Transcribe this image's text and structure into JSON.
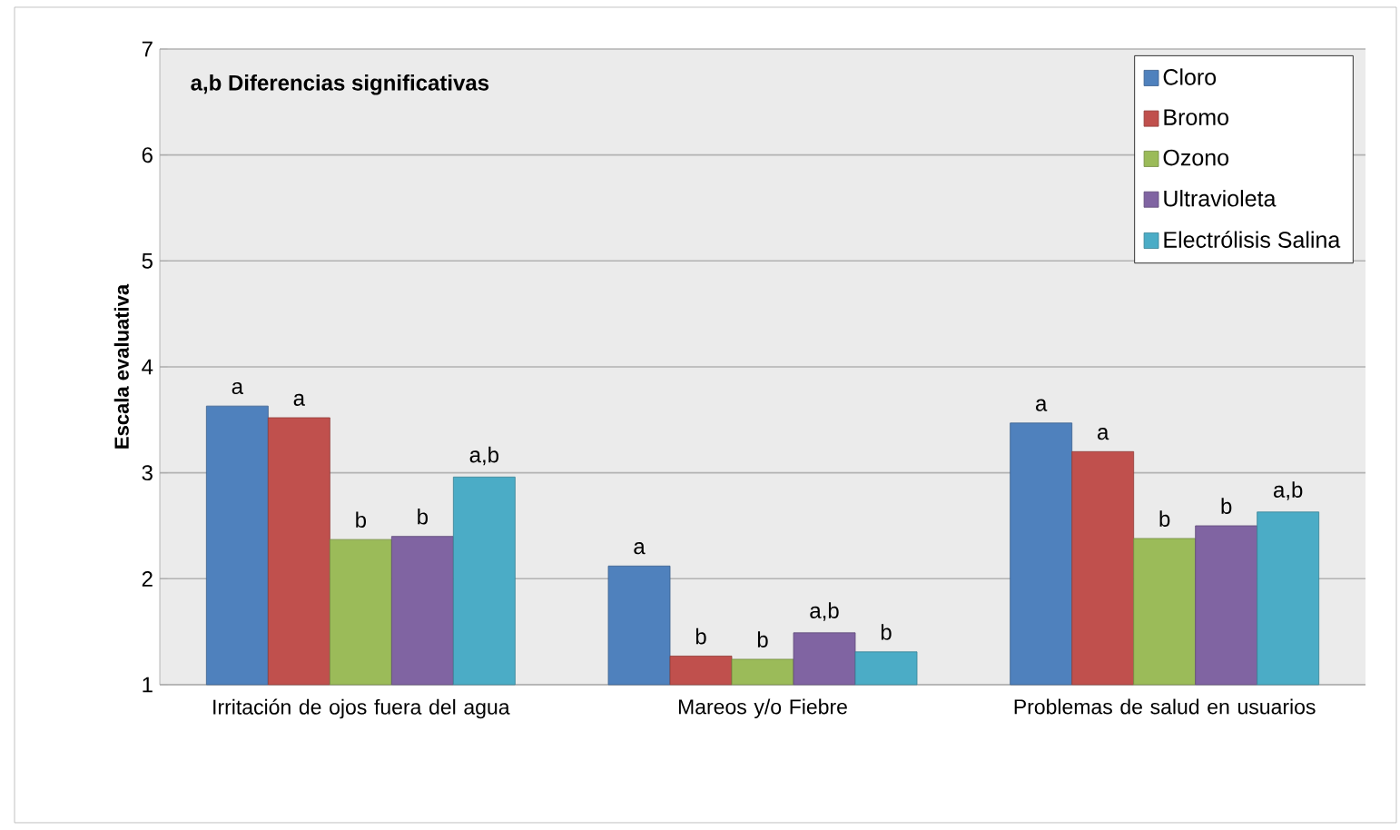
{
  "chart_data": {
    "type": "bar",
    "ylabel": "Escala evaluativa",
    "categories": [
      "Irritación de ojos fuera del agua",
      "Mareos y/o Fiebre",
      "Problemas de salud en usuarios"
    ],
    "series": [
      {
        "name": "Cloro",
        "color": "#4f81bd",
        "values": [
          3.63,
          2.12,
          3.47
        ],
        "value_labels": [
          "a",
          "a",
          "a"
        ]
      },
      {
        "name": "Bromo",
        "color": "#c0504d",
        "values": [
          3.52,
          1.27,
          3.2
        ],
        "value_labels": [
          "a",
          "b",
          "a"
        ]
      },
      {
        "name": "Ozono",
        "color": "#9bbb59",
        "values": [
          2.37,
          1.24,
          2.38
        ],
        "value_labels": [
          "b",
          "b",
          "b"
        ]
      },
      {
        "name": "Ultravioleta",
        "color": "#8064a2",
        "values": [
          2.4,
          1.49,
          2.5
        ],
        "value_labels": [
          "b",
          "a,b",
          "b"
        ]
      },
      {
        "name": "Electrólisis Salina",
        "color": "#4bacc6",
        "values": [
          2.96,
          1.31,
          2.63
        ],
        "value_labels": [
          "a,b",
          "b",
          "a,b"
        ]
      }
    ],
    "ylim": [
      1,
      7
    ],
    "yticks": [
      1,
      2,
      3,
      4,
      5,
      6,
      7
    ],
    "grid": "y",
    "legend": "top right",
    "annotations": [
      "a,b Diferencias significativas"
    ]
  }
}
